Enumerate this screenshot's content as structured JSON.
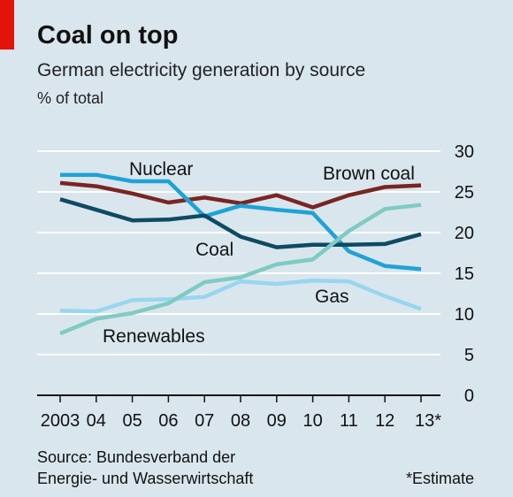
{
  "header": {
    "title": "Coal on top",
    "subtitle": "German electricity generation by source",
    "unit": "% of total"
  },
  "footer": {
    "source_line1": "Source: Bundesverband der",
    "source_line2": "Energie- und Wasserwirtschaft",
    "footnote": "*Estimate"
  },
  "colors": {
    "background": "#d9e6ee",
    "accent": "#e3120b",
    "gridline": "#ffffff",
    "axis": "#111111"
  },
  "chart_data": {
    "type": "line",
    "title": "Coal on top",
    "subtitle": "German electricity generation by source",
    "ylabel": "% of total",
    "x_tick_labels": [
      "2003",
      "04",
      "05",
      "06",
      "07",
      "08",
      "09",
      "10",
      "11",
      "12",
      "13*"
    ],
    "ylim": [
      0,
      30
    ],
    "yticks": [
      "0",
      "5",
      "10",
      "15",
      "20",
      "25",
      "30"
    ],
    "y_axis_side": "right",
    "grid": true,
    "series": [
      {
        "name": "Brown coal",
        "color": "#7a2521",
        "values": [
          26.1,
          25.7,
          24.8,
          23.7,
          24.3,
          23.6,
          24.6,
          23.1,
          24.6,
          25.6,
          25.8
        ]
      },
      {
        "name": "Nuclear",
        "color": "#1fa2d6",
        "values": [
          27.1,
          27.1,
          26.3,
          26.3,
          22.0,
          23.3,
          22.8,
          22.4,
          17.7,
          15.9,
          15.5
        ]
      },
      {
        "name": "Coal",
        "color": "#0f4a63",
        "values": [
          24.1,
          22.8,
          21.5,
          21.6,
          22.1,
          19.5,
          18.2,
          18.5,
          18.5,
          18.6,
          19.8
        ]
      },
      {
        "name": "Gas",
        "color": "#98d6ef",
        "values": [
          10.4,
          10.3,
          11.7,
          11.8,
          12.1,
          14.0,
          13.7,
          14.1,
          14.0,
          12.2,
          10.6
        ]
      },
      {
        "name": "Renewables",
        "color": "#7fcbc2",
        "values": [
          7.6,
          9.4,
          10.1,
          11.3,
          13.9,
          14.5,
          16.1,
          16.7,
          20.2,
          22.9,
          23.4
        ]
      }
    ]
  }
}
